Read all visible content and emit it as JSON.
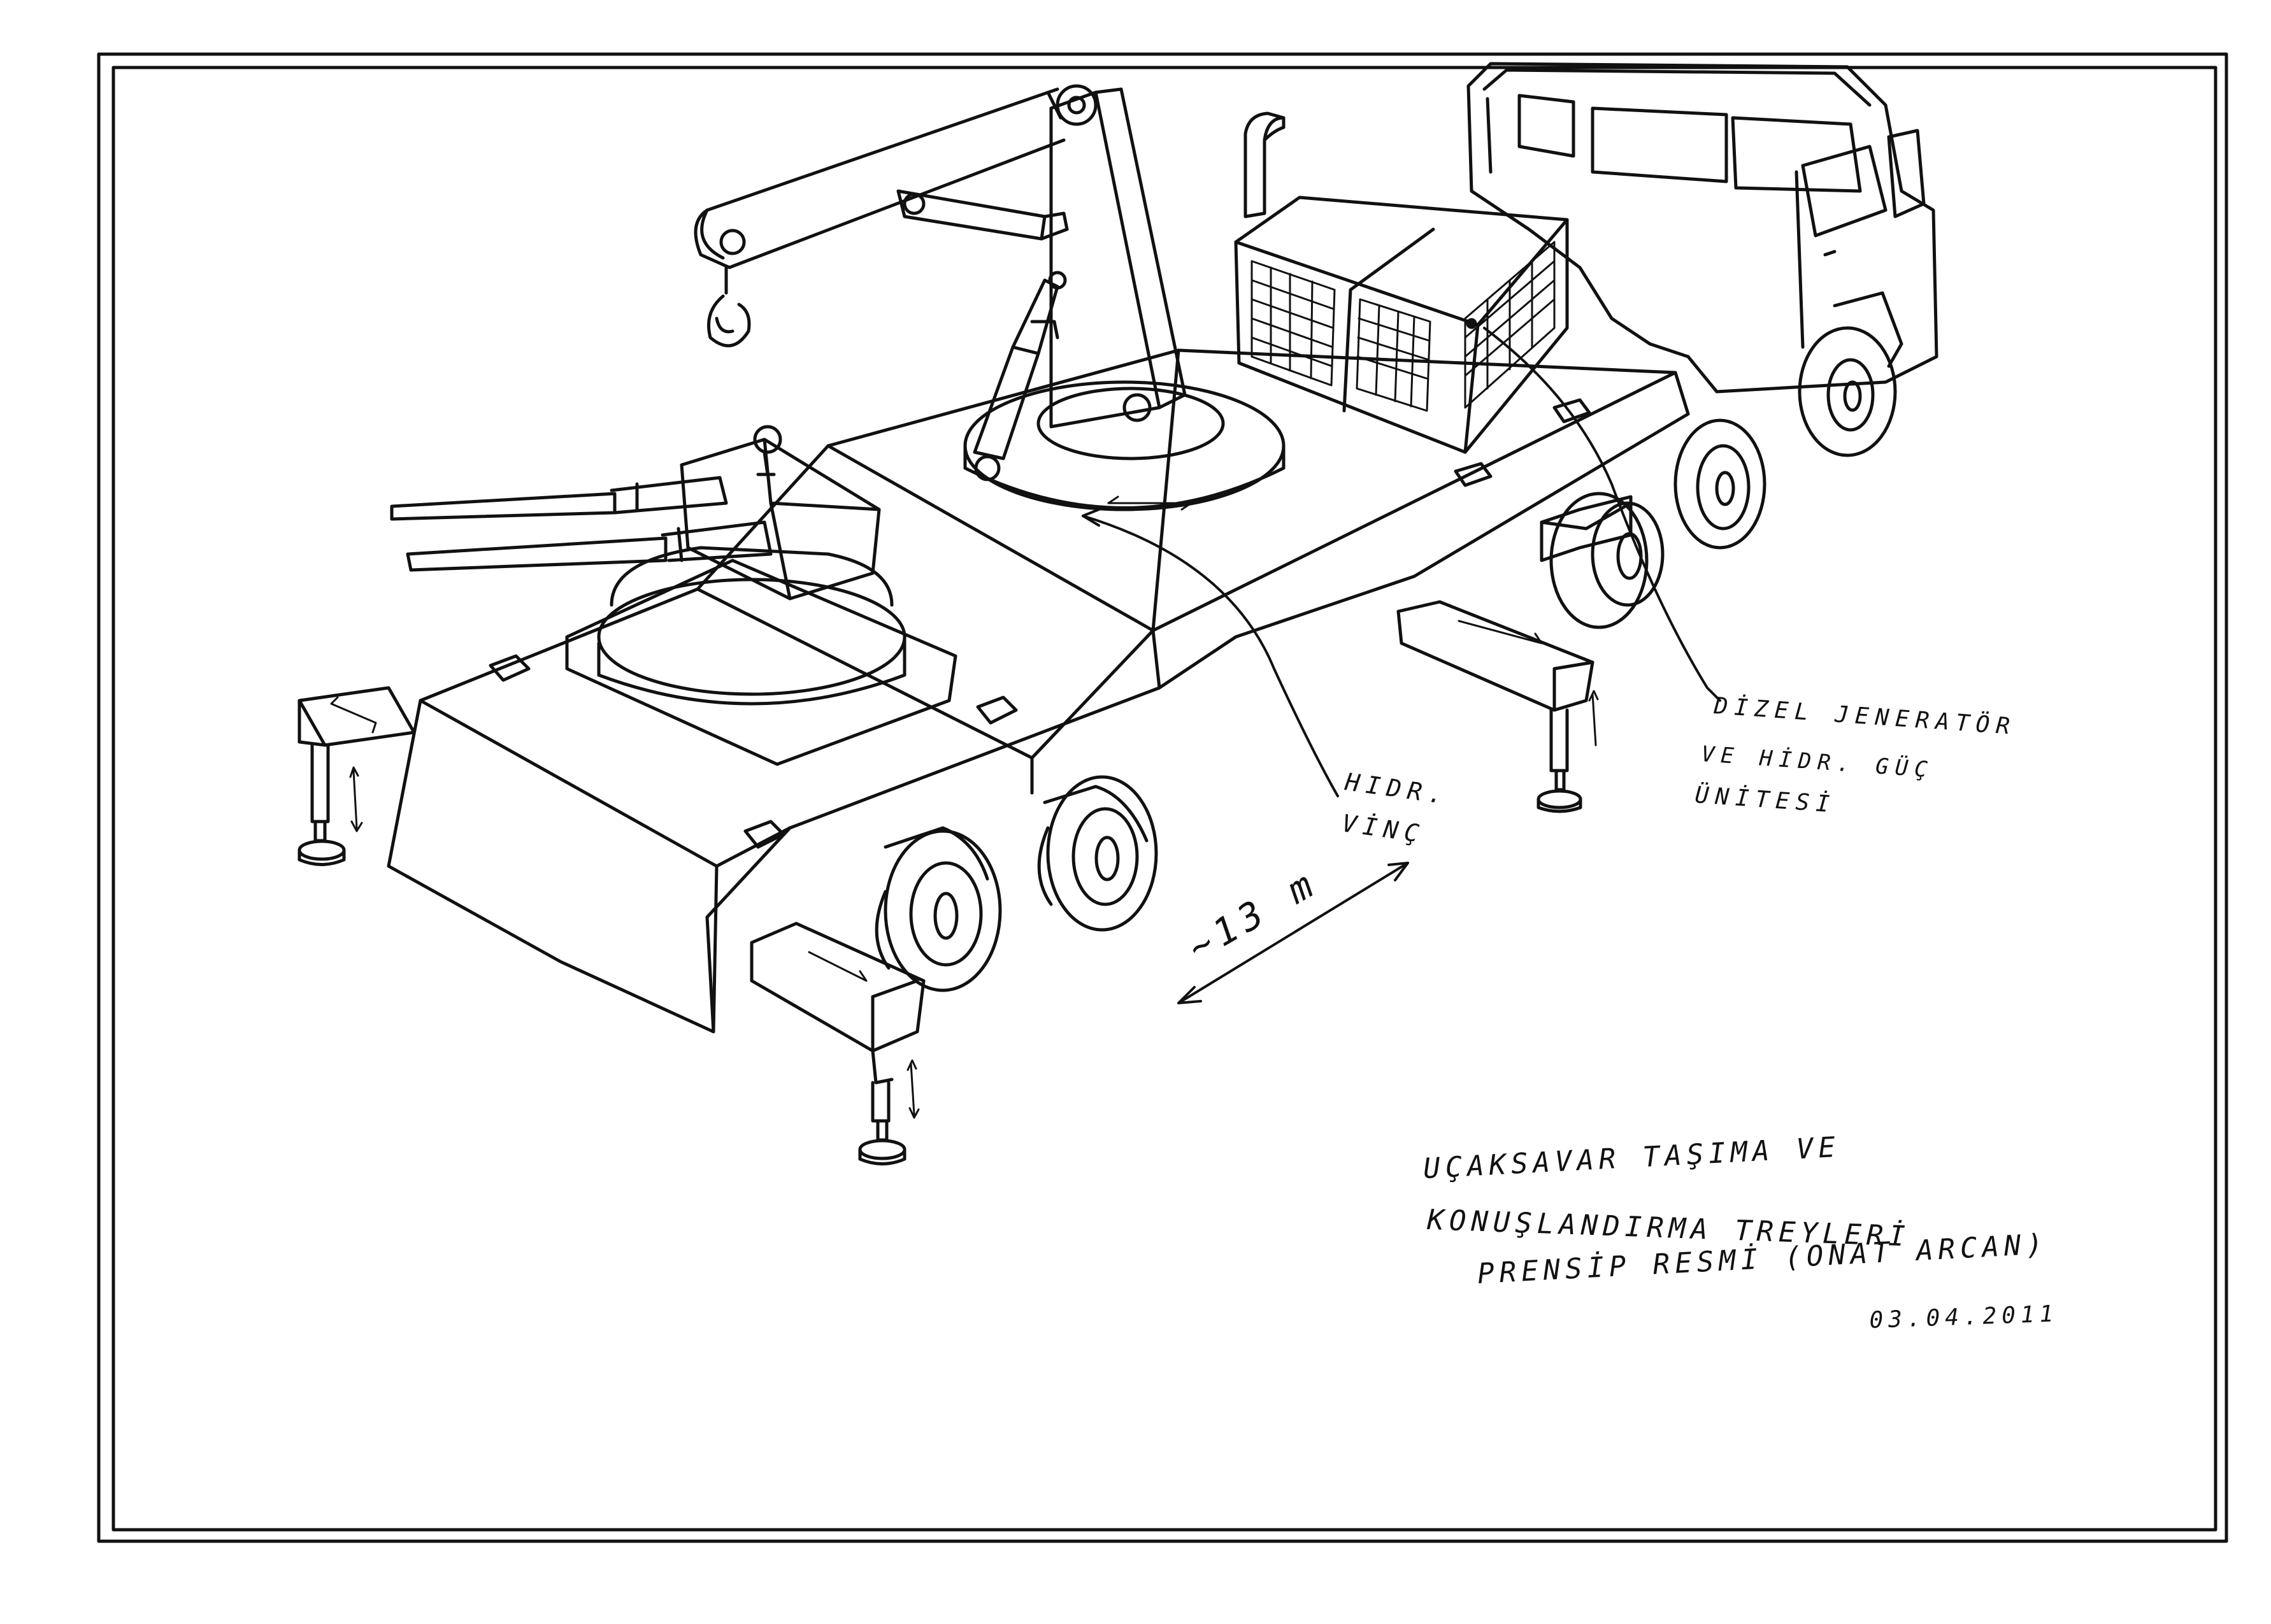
{
  "labels": {
    "winch_line1": "HIDR.",
    "winch_line2": "VİNÇ",
    "generator_line1": "DİZEL JENERATÖR",
    "generator_line2": "VE HİDR. GÜÇ",
    "generator_line3": "ÜNİTESİ",
    "length": "~13 m"
  },
  "title_block": {
    "line1": "UÇAKSAVAR TAŞIMA VE",
    "line2": "KONUŞLANDIRMA TREYLERİ",
    "line3": "PRENSİP RESMİ (ONAT ARCAN)",
    "date": "03.04.2011"
  }
}
